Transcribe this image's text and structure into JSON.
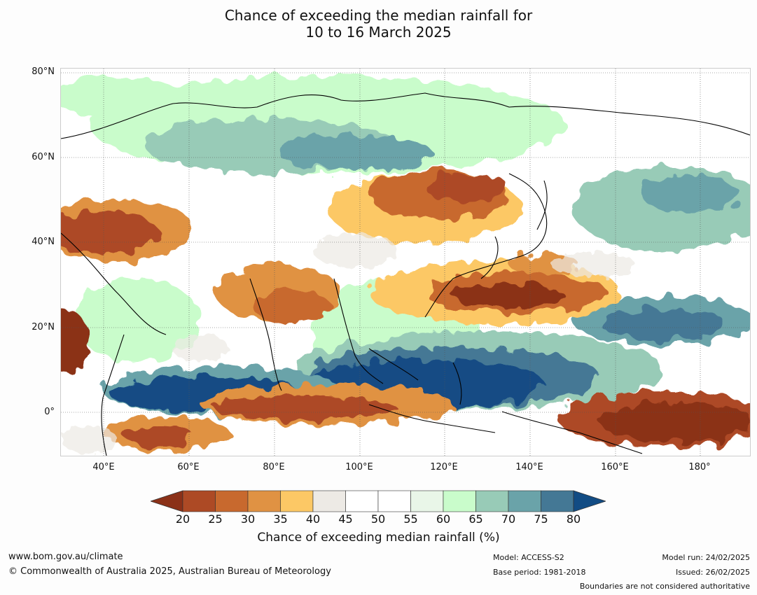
{
  "title": {
    "line1": "Chance of exceeding the median rainfall for",
    "line2": "10 to 16 March 2025"
  },
  "map": {
    "lat_labels": [
      "80°N",
      "60°N",
      "40°N",
      "20°N",
      "0°"
    ],
    "lon_labels": [
      "40°E",
      "60°E",
      "80°E",
      "100°E",
      "120°E",
      "140°E",
      "160°E",
      "180°"
    ],
    "extent": {
      "lon": [
        30,
        191
      ],
      "lat": [
        -10,
        81
      ]
    }
  },
  "colorbar": {
    "ticks": [
      "20",
      "25",
      "30",
      "35",
      "40",
      "45",
      "50",
      "55",
      "60",
      "65",
      "70",
      "75",
      "80"
    ],
    "colors": [
      "#8b3118",
      "#ad4a25",
      "#c8692e",
      "#e09243",
      "#fcc865",
      "#edeae5",
      "#ffffff",
      "#ffffff",
      "#e9f6e8",
      "#c9fccb",
      "#98cbb7",
      "#6aa3a9",
      "#447895",
      "#124c84"
    ],
    "label": "Chance of exceeding median rainfall (%)"
  },
  "footer": {
    "website": "www.bom.gov.au/climate",
    "copyright": "© Commonwealth of Australia 2025, Australian Bureau of Meteorology",
    "model": "Model: ACCESS-S2",
    "base_period": "Base period: 1981-2018",
    "model_run": "Model run: 24/02/2025",
    "issued": "Issued: 26/02/2025",
    "disclaimer": "Boundaries are not considered authoritative"
  }
}
